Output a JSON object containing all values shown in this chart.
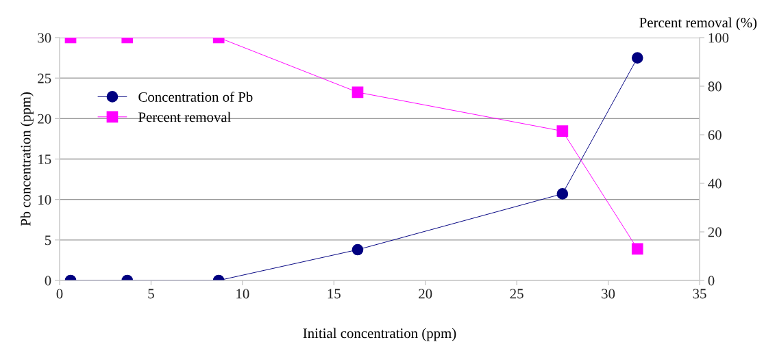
{
  "chart_data": {
    "type": "line",
    "xlabel": "Initial concentration (ppm)",
    "ylabel": "Pb concentration (ppm)",
    "y2label": "Percent removal (%)",
    "x": [
      0.6,
      3.7,
      8.7,
      16.3,
      27.5,
      31.6
    ],
    "series": [
      {
        "name": "Concentration of Pb",
        "color": "#000080",
        "marker": "circle",
        "values": [
          0,
          0,
          0,
          3.8,
          10.7,
          27.5
        ]
      },
      {
        "name": "Percent removal",
        "color": "#ff00ff",
        "marker": "square",
        "axis": "y2",
        "values": [
          100,
          100,
          100,
          77.5,
          61.5,
          13
        ]
      }
    ],
    "xlim": [
      0,
      35
    ],
    "xticks": [
      0,
      5,
      10,
      15,
      20,
      25,
      30,
      35
    ],
    "ylim": [
      0,
      30
    ],
    "yticks": [
      0,
      5,
      10,
      15,
      20,
      25,
      30
    ],
    "y2lim": [
      0,
      100
    ],
    "y2ticks": [
      0,
      20,
      40,
      60,
      80,
      100
    ],
    "grid": "y",
    "legend": "top left"
  }
}
